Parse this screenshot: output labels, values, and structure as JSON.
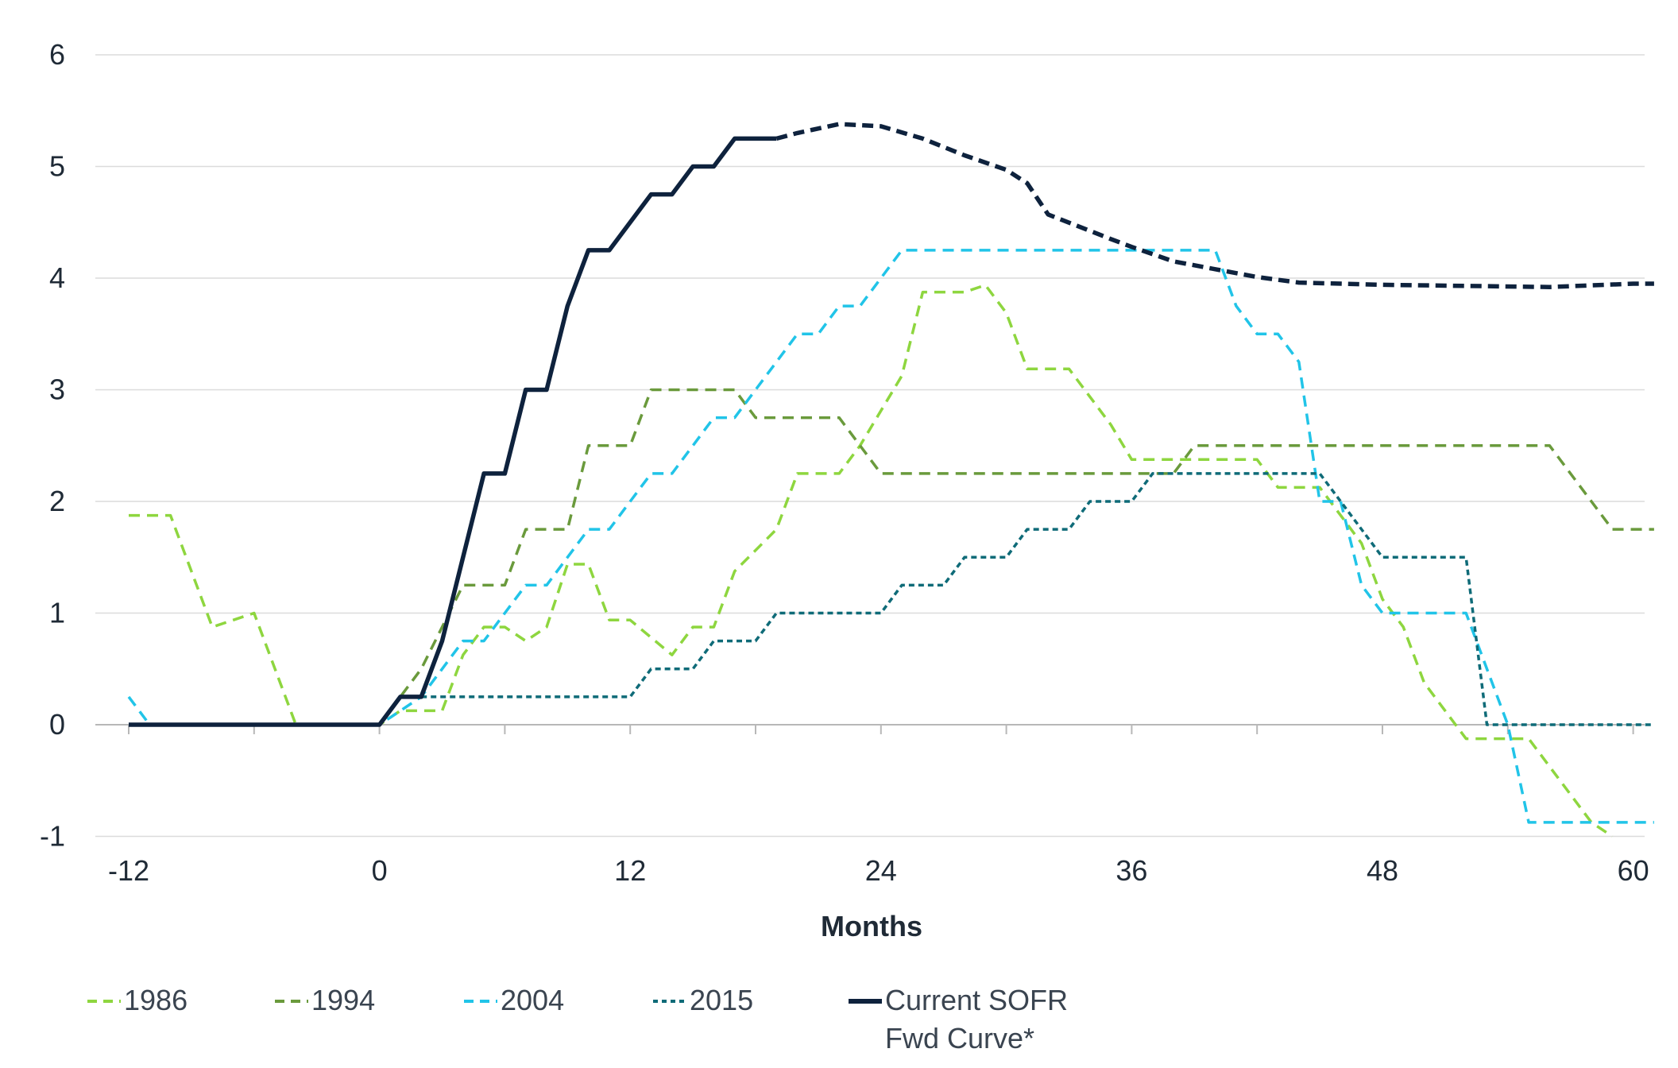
{
  "chart_data": {
    "type": "line",
    "xlabel": "Months",
    "ylabel": "",
    "xlim": [
      -13,
      61
    ],
    "ylim": [
      -1,
      6
    ],
    "xticks": [
      -12,
      0,
      12,
      24,
      36,
      48,
      60
    ],
    "yticks": [
      6,
      5,
      4,
      3,
      2,
      1,
      0,
      -1
    ],
    "grid": "horizontal",
    "legend_position": "bottom",
    "series": [
      {
        "name": "1986",
        "color": "#8ed63f",
        "style": "dashed",
        "points": [
          [
            -12,
            1.875
          ],
          [
            -10,
            1.875
          ],
          [
            -8,
            0.875
          ],
          [
            -6,
            1.0
          ],
          [
            -4,
            0.0
          ],
          [
            0,
            0.0
          ],
          [
            1,
            0.125
          ],
          [
            3,
            0.125
          ],
          [
            4,
            0.625
          ],
          [
            5,
            0.875
          ],
          [
            6,
            0.875
          ],
          [
            7,
            0.75
          ],
          [
            8,
            0.875
          ],
          [
            9,
            1.4375
          ],
          [
            10,
            1.4375
          ],
          [
            11,
            0.9375
          ],
          [
            12,
            0.9375
          ],
          [
            14,
            0.625
          ],
          [
            15,
            0.875
          ],
          [
            16,
            0.875
          ],
          [
            17,
            1.375
          ],
          [
            19,
            1.75
          ],
          [
            20,
            2.25
          ],
          [
            22,
            2.25
          ],
          [
            23,
            2.5
          ],
          [
            25,
            3.125
          ],
          [
            26,
            3.875
          ],
          [
            28,
            3.875
          ],
          [
            29,
            3.9375
          ],
          [
            30,
            3.6875
          ],
          [
            31,
            3.1875
          ],
          [
            33,
            3.1875
          ],
          [
            35,
            2.6875
          ],
          [
            36,
            2.375
          ],
          [
            42,
            2.375
          ],
          [
            43,
            2.125
          ],
          [
            45,
            2.125
          ],
          [
            47,
            1.625
          ],
          [
            48,
            1.125
          ],
          [
            49,
            0.875
          ],
          [
            50,
            0.375
          ],
          [
            52,
            -0.125
          ],
          [
            55,
            -0.125
          ],
          [
            58,
            -0.875
          ],
          [
            59,
            -1.0
          ]
        ]
      },
      {
        "name": "1994",
        "color": "#6a9a3c",
        "style": "dashed",
        "points": [
          [
            0,
            0.0
          ],
          [
            2,
            0.5
          ],
          [
            4,
            1.25
          ],
          [
            6,
            1.25
          ],
          [
            7,
            1.75
          ],
          [
            9,
            1.75
          ],
          [
            10,
            2.5
          ],
          [
            12,
            2.5
          ],
          [
            13,
            3.0
          ],
          [
            17,
            3.0
          ],
          [
            18,
            2.75
          ],
          [
            22,
            2.75
          ],
          [
            24,
            2.25
          ],
          [
            38,
            2.25
          ],
          [
            39,
            2.5
          ],
          [
            56,
            2.5
          ],
          [
            58,
            2.0
          ],
          [
            59,
            1.75
          ],
          [
            61,
            1.75
          ]
        ]
      },
      {
        "name": "2004",
        "color": "#21c4e8",
        "style": "dashed",
        "points": [
          [
            -12,
            0.25
          ],
          [
            -11,
            0.0
          ],
          [
            0,
            0.0
          ],
          [
            2,
            0.25
          ],
          [
            3,
            0.5
          ],
          [
            4,
            0.75
          ],
          [
            5,
            0.75
          ],
          [
            6,
            1.0
          ],
          [
            7,
            1.25
          ],
          [
            8,
            1.25
          ],
          [
            9,
            1.5
          ],
          [
            10,
            1.75
          ],
          [
            11,
            1.75
          ],
          [
            12,
            2.0
          ],
          [
            13,
            2.25
          ],
          [
            14,
            2.25
          ],
          [
            15,
            2.5
          ],
          [
            16,
            2.75
          ],
          [
            17,
            2.75
          ],
          [
            18,
            3.0
          ],
          [
            19,
            3.25
          ],
          [
            20,
            3.5
          ],
          [
            21,
            3.5
          ],
          [
            22,
            3.75
          ],
          [
            23,
            3.75
          ],
          [
            24,
            4.0
          ],
          [
            25,
            4.25
          ],
          [
            40,
            4.25
          ],
          [
            41,
            3.75
          ],
          [
            42,
            3.5
          ],
          [
            43,
            3.5
          ],
          [
            44,
            3.25
          ],
          [
            45,
            2.0
          ],
          [
            46,
            2.0
          ],
          [
            47,
            1.25
          ],
          [
            48,
            1.0
          ],
          [
            52,
            1.0
          ],
          [
            54,
            0.0
          ],
          [
            55,
            -0.875
          ],
          [
            61,
            -0.875
          ]
        ]
      },
      {
        "name": "2015",
        "color": "#0f6b78",
        "style": "dotted",
        "points": [
          [
            2,
            0.25
          ],
          [
            12,
            0.25
          ],
          [
            13,
            0.5
          ],
          [
            15,
            0.5
          ],
          [
            16,
            0.75
          ],
          [
            18,
            0.75
          ],
          [
            19,
            1.0
          ],
          [
            24,
            1.0
          ],
          [
            25,
            1.25
          ],
          [
            27,
            1.25
          ],
          [
            28,
            1.5
          ],
          [
            30,
            1.5
          ],
          [
            31,
            1.75
          ],
          [
            33,
            1.75
          ],
          [
            34,
            2.0
          ],
          [
            36,
            2.0
          ],
          [
            37,
            2.25
          ],
          [
            45,
            2.25
          ],
          [
            46,
            2.0
          ],
          [
            48,
            1.5
          ],
          [
            52,
            1.5
          ],
          [
            53,
            0.0
          ],
          [
            61,
            0.0
          ]
        ]
      },
      {
        "name": "Current SOFR Fwd Curve*",
        "color": "#0e223d",
        "style": "solid-then-dashed",
        "points": [
          [
            -12,
            0.0
          ],
          [
            0,
            0.0
          ],
          [
            1,
            0.25
          ],
          [
            2,
            0.25
          ],
          [
            3,
            0.75
          ],
          [
            5,
            2.25
          ],
          [
            6,
            2.25
          ],
          [
            7,
            3.0
          ],
          [
            8,
            3.0
          ],
          [
            9,
            3.75
          ],
          [
            10,
            4.25
          ],
          [
            11,
            4.25
          ],
          [
            13,
            4.75
          ],
          [
            14,
            4.75
          ],
          [
            15,
            5.0
          ],
          [
            16,
            5.0
          ],
          [
            17,
            5.25
          ],
          [
            19,
            5.25
          ],
          [
            20,
            5.3
          ],
          [
            22,
            5.38
          ],
          [
            24,
            5.36
          ],
          [
            26,
            5.25
          ],
          [
            28,
            5.1
          ],
          [
            30,
            4.97
          ],
          [
            31,
            4.85
          ],
          [
            32,
            4.57
          ],
          [
            35,
            4.35
          ],
          [
            36,
            4.28
          ],
          [
            38,
            4.15
          ],
          [
            40,
            4.08
          ],
          [
            42,
            4.01
          ],
          [
            44,
            3.96
          ],
          [
            48,
            3.94
          ],
          [
            52,
            3.93
          ],
          [
            56,
            3.92
          ],
          [
            60,
            3.95
          ],
          [
            61,
            3.95
          ]
        ],
        "dash_from_x": 19
      }
    ]
  },
  "legend": [
    {
      "label": "1986"
    },
    {
      "label": "1994"
    },
    {
      "label": "2004"
    },
    {
      "label": "2015"
    },
    {
      "label_line1": "Current SOFR",
      "label_line2": "Fwd Curve*"
    }
  ]
}
